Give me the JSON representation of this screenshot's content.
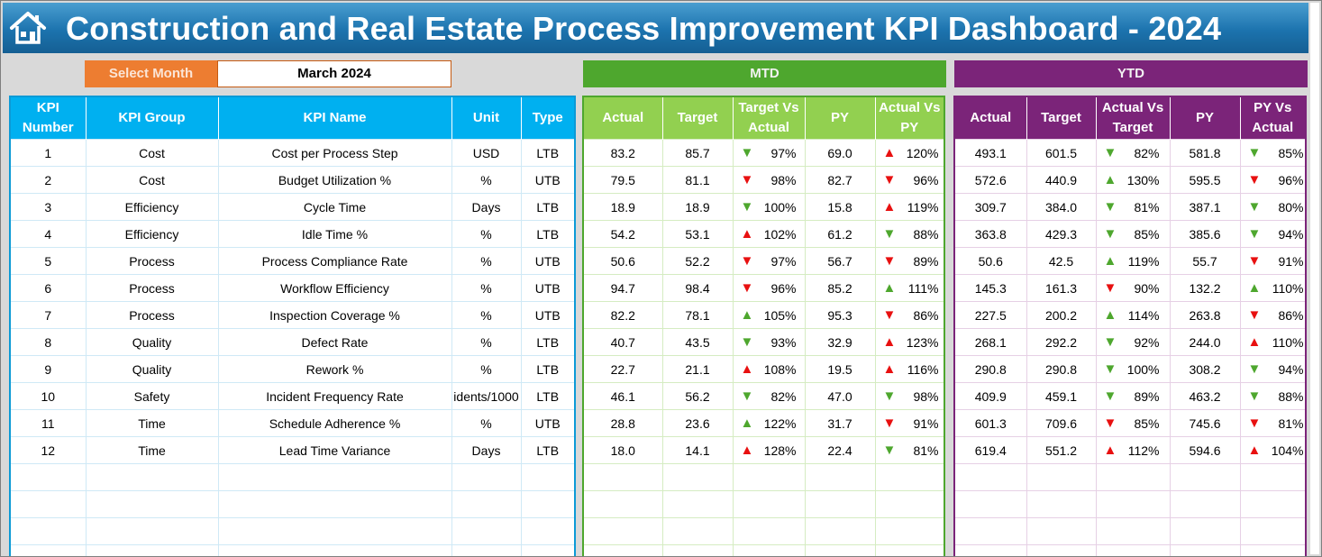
{
  "header": {
    "title": "Construction and Real Estate Process Improvement KPI Dashboard - 2024",
    "icon": "home-icon"
  },
  "selector": {
    "label": "Select Month",
    "value": "March 2024"
  },
  "sections": {
    "mtd": "MTD",
    "ytd": "YTD"
  },
  "colors": {
    "title_bar": "#1c73ae",
    "kpi_header": "#00b0f0",
    "mtd": "#92d050",
    "ytd": "#7b2479",
    "selector": "#ed7d31",
    "good": "#4ea72e",
    "bad": "#e81010"
  },
  "kpi_columns": [
    "KPI Number",
    "KPI Group",
    "KPI Name",
    "Unit",
    "Type"
  ],
  "mtd_columns": [
    "Actual",
    "Target",
    "Target Vs Actual",
    "PY",
    "Actual Vs PY"
  ],
  "ytd_columns": [
    "Actual",
    "Target",
    "Actual Vs Target",
    "PY",
    "PY Vs Actual"
  ],
  "rows": [
    {
      "num": "1",
      "group": "Cost",
      "name": "Cost per Process Step",
      "unit": "USD",
      "type": "LTB",
      "mtd": {
        "actual": "83.2",
        "target": "85.7",
        "tva": "97%",
        "tva_icon": "down-green",
        "py": "69.0",
        "avp": "120%",
        "avp_icon": "up-red"
      },
      "ytd": {
        "actual": "493.1",
        "target": "601.5",
        "avt": "82%",
        "avt_icon": "down-green",
        "py": "581.8",
        "pva": "85%",
        "pva_icon": "down-green"
      }
    },
    {
      "num": "2",
      "group": "Cost",
      "name": "Budget Utilization %",
      "unit": "%",
      "type": "UTB",
      "mtd": {
        "actual": "79.5",
        "target": "81.1",
        "tva": "98%",
        "tva_icon": "down-red",
        "py": "82.7",
        "avp": "96%",
        "avp_icon": "down-red"
      },
      "ytd": {
        "actual": "572.6",
        "target": "440.9",
        "avt": "130%",
        "avt_icon": "up-green",
        "py": "595.5",
        "pva": "96%",
        "pva_icon": "down-red"
      }
    },
    {
      "num": "3",
      "group": "Efficiency",
      "name": "Cycle Time",
      "unit": "Days",
      "type": "LTB",
      "mtd": {
        "actual": "18.9",
        "target": "18.9",
        "tva": "100%",
        "tva_icon": "down-green",
        "py": "15.8",
        "avp": "119%",
        "avp_icon": "up-red"
      },
      "ytd": {
        "actual": "309.7",
        "target": "384.0",
        "avt": "81%",
        "avt_icon": "down-green",
        "py": "387.1",
        "pva": "80%",
        "pva_icon": "down-green"
      }
    },
    {
      "num": "4",
      "group": "Efficiency",
      "name": "Idle Time %",
      "unit": "%",
      "type": "LTB",
      "mtd": {
        "actual": "54.2",
        "target": "53.1",
        "tva": "102%",
        "tva_icon": "up-red",
        "py": "61.2",
        "avp": "88%",
        "avp_icon": "down-green"
      },
      "ytd": {
        "actual": "363.8",
        "target": "429.3",
        "avt": "85%",
        "avt_icon": "down-green",
        "py": "385.6",
        "pva": "94%",
        "pva_icon": "down-green"
      }
    },
    {
      "num": "5",
      "group": "Process",
      "name": "Process Compliance Rate",
      "unit": "%",
      "type": "UTB",
      "mtd": {
        "actual": "50.6",
        "target": "52.2",
        "tva": "97%",
        "tva_icon": "down-red",
        "py": "56.7",
        "avp": "89%",
        "avp_icon": "down-red"
      },
      "ytd": {
        "actual": "50.6",
        "target": "42.5",
        "avt": "119%",
        "avt_icon": "up-green",
        "py": "55.7",
        "pva": "91%",
        "pva_icon": "down-red"
      }
    },
    {
      "num": "6",
      "group": "Process",
      "name": "Workflow Efficiency",
      "unit": "%",
      "type": "UTB",
      "mtd": {
        "actual": "94.7",
        "target": "98.4",
        "tva": "96%",
        "tva_icon": "down-red",
        "py": "85.2",
        "avp": "111%",
        "avp_icon": "up-green"
      },
      "ytd": {
        "actual": "145.3",
        "target": "161.3",
        "avt": "90%",
        "avt_icon": "down-red",
        "py": "132.2",
        "pva": "110%",
        "pva_icon": "up-green"
      }
    },
    {
      "num": "7",
      "group": "Process",
      "name": "Inspection Coverage %",
      "unit": "%",
      "type": "UTB",
      "mtd": {
        "actual": "82.2",
        "target": "78.1",
        "tva": "105%",
        "tva_icon": "up-green",
        "py": "95.3",
        "avp": "86%",
        "avp_icon": "down-red"
      },
      "ytd": {
        "actual": "227.5",
        "target": "200.2",
        "avt": "114%",
        "avt_icon": "up-green",
        "py": "263.8",
        "pva": "86%",
        "pva_icon": "down-red"
      }
    },
    {
      "num": "8",
      "group": "Quality",
      "name": "Defect Rate",
      "unit": "%",
      "type": "LTB",
      "mtd": {
        "actual": "40.7",
        "target": "43.5",
        "tva": "93%",
        "tva_icon": "down-green",
        "py": "32.9",
        "avp": "123%",
        "avp_icon": "up-red"
      },
      "ytd": {
        "actual": "268.1",
        "target": "292.2",
        "avt": "92%",
        "avt_icon": "down-green",
        "py": "244.0",
        "pva": "110%",
        "pva_icon": "up-red"
      }
    },
    {
      "num": "9",
      "group": "Quality",
      "name": "Rework %",
      "unit": "%",
      "type": "LTB",
      "mtd": {
        "actual": "22.7",
        "target": "21.1",
        "tva": "108%",
        "tva_icon": "up-red",
        "py": "19.5",
        "avp": "116%",
        "avp_icon": "up-red"
      },
      "ytd": {
        "actual": "290.8",
        "target": "290.8",
        "avt": "100%",
        "avt_icon": "down-green",
        "py": "308.2",
        "pva": "94%",
        "pva_icon": "down-green"
      }
    },
    {
      "num": "10",
      "group": "Safety",
      "name": "Incident Frequency Rate",
      "unit": "idents/1000",
      "type": "LTB",
      "mtd": {
        "actual": "46.1",
        "target": "56.2",
        "tva": "82%",
        "tva_icon": "down-green",
        "py": "47.0",
        "avp": "98%",
        "avp_icon": "down-green"
      },
      "ytd": {
        "actual": "409.9",
        "target": "459.1",
        "avt": "89%",
        "avt_icon": "down-green",
        "py": "463.2",
        "pva": "88%",
        "pva_icon": "down-green"
      }
    },
    {
      "num": "11",
      "group": "Time",
      "name": "Schedule Adherence %",
      "unit": "%",
      "type": "UTB",
      "mtd": {
        "actual": "28.8",
        "target": "23.6",
        "tva": "122%",
        "tva_icon": "up-green",
        "py": "31.7",
        "avp": "91%",
        "avp_icon": "down-red"
      },
      "ytd": {
        "actual": "601.3",
        "target": "709.6",
        "avt": "85%",
        "avt_icon": "down-red",
        "py": "745.6",
        "pva": "81%",
        "pva_icon": "down-red"
      }
    },
    {
      "num": "12",
      "group": "Time",
      "name": "Lead Time Variance",
      "unit": "Days",
      "type": "LTB",
      "mtd": {
        "actual": "18.0",
        "target": "14.1",
        "tva": "128%",
        "tva_icon": "up-red",
        "py": "22.4",
        "avp": "81%",
        "avp_icon": "down-green"
      },
      "ytd": {
        "actual": "619.4",
        "target": "551.2",
        "avt": "112%",
        "avt_icon": "up-red",
        "py": "594.6",
        "pva": "104%",
        "pva_icon": "up-red"
      }
    }
  ]
}
